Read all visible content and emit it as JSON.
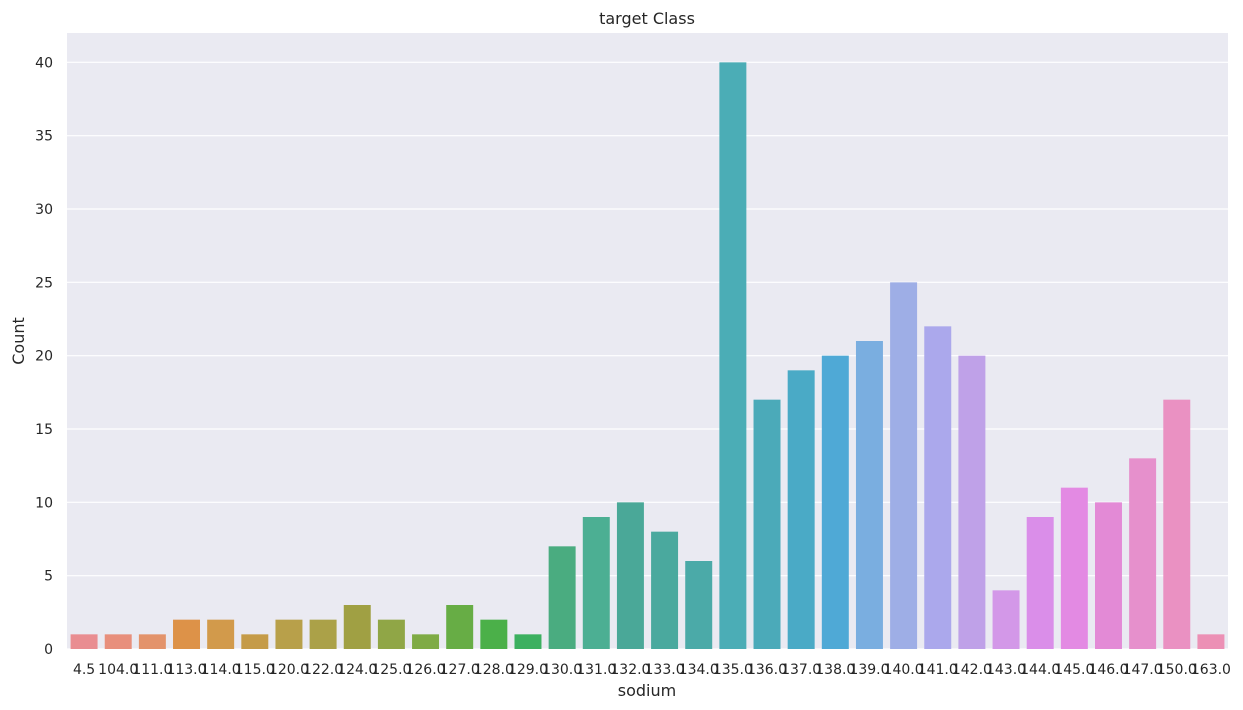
{
  "chart_data": {
    "type": "bar",
    "title": "target Class",
    "xlabel": "sodium",
    "ylabel": "Count",
    "ylim": [
      0,
      42
    ],
    "yticks": [
      0,
      5,
      10,
      15,
      20,
      25,
      30,
      35,
      40
    ],
    "grid": true,
    "background": "#EAEAF2",
    "categories": [
      "4.5",
      "104.0",
      "111.0",
      "113.0",
      "114.0",
      "115.0",
      "120.0",
      "122.0",
      "124.0",
      "125.0",
      "126.0",
      "127.0",
      "128.0",
      "129.0",
      "130.0",
      "131.0",
      "132.0",
      "133.0",
      "134.0",
      "135.0",
      "136.0",
      "137.0",
      "138.0",
      "139.0",
      "140.0",
      "141.0",
      "142.0",
      "143.0",
      "144.0",
      "145.0",
      "146.0",
      "147.0",
      "150.0",
      "163.0"
    ],
    "values": [
      1,
      1,
      1,
      2,
      2,
      1,
      2,
      2,
      3,
      2,
      1,
      3,
      2,
      1,
      7,
      9,
      10,
      8,
      6,
      40,
      17,
      19,
      20,
      21,
      25,
      22,
      20,
      4,
      9,
      11,
      10,
      13,
      17,
      1
    ],
    "colors": [
      "#e98d91",
      "#e88f7c",
      "#e3936b",
      "#dd9248",
      "#d29a4b",
      "#c59b48",
      "#b8a04a",
      "#aba148",
      "#a0a043",
      "#90a646",
      "#7fab45",
      "#67ad45",
      "#4bb049",
      "#3cb060",
      "#4aac80",
      "#4caf93",
      "#4aa898",
      "#4aa99e",
      "#4baaa8",
      "#4badb6",
      "#4baab9",
      "#4aaac6",
      "#4fa9d6",
      "#7aaee0",
      "#9eaee6",
      "#aba8ec",
      "#bfa1e8",
      "#d398e8",
      "#da8ee9",
      "#e38ae3",
      "#e38ad6",
      "#e690cc",
      "#ea91c2",
      "#ec90b5"
    ]
  }
}
